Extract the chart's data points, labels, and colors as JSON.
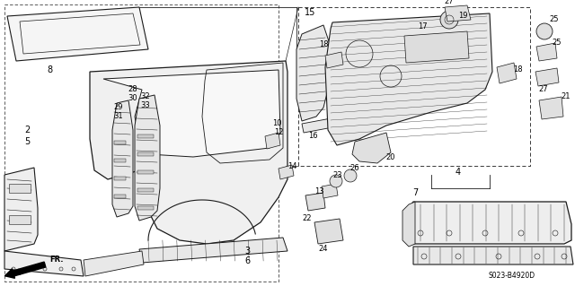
{
  "bg_color": "#ffffff",
  "diagram_code": "S023-B4920D",
  "line_color": "#1a1a1a",
  "lw": 0.7
}
